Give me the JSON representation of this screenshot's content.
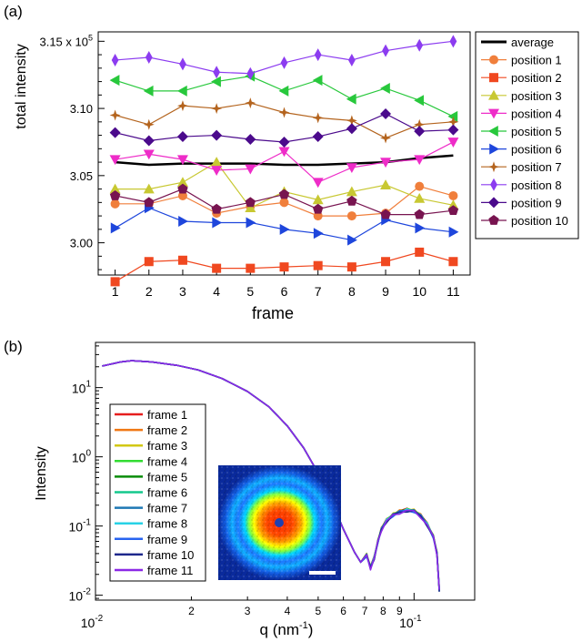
{
  "chart_data": [
    {
      "panel_label": "(a)",
      "type": "line",
      "xlabel": "frame",
      "ylabel": "total intensity",
      "y_multiplier_label": "x 10",
      "y_multiplier_exp": "5",
      "x": [
        1,
        2,
        3,
        4,
        5,
        6,
        7,
        8,
        9,
        10,
        11
      ],
      "xlim": [
        0.5,
        11.5
      ],
      "ylim": [
        2.976,
        3.157
      ],
      "y_ticks": [
        {
          "value": 3.0,
          "label": "3.00"
        },
        {
          "value": 3.05,
          "label": "3.05"
        },
        {
          "value": 3.1,
          "label": "3.10"
        },
        {
          "value": 3.15,
          "label": "3.15"
        }
      ],
      "legend_position": "right",
      "series": [
        {
          "name": "average",
          "color": "#000000",
          "marker": "none",
          "values": [
            3.06,
            3.058,
            3.059,
            3.059,
            3.059,
            3.058,
            3.058,
            3.059,
            3.06,
            3.063,
            3.065
          ]
        },
        {
          "name": "position  1",
          "color": "#f07f3c",
          "marker": "circle",
          "values": [
            3.029,
            3.029,
            3.035,
            3.022,
            3.027,
            3.03,
            3.02,
            3.02,
            3.022,
            3.042,
            3.035
          ]
        },
        {
          "name": "position  2",
          "color": "#f04820",
          "marker": "square",
          "values": [
            2.971,
            2.986,
            2.987,
            2.981,
            2.981,
            2.982,
            2.983,
            2.982,
            2.986,
            2.993,
            2.986
          ]
        },
        {
          "name": "position  3",
          "color": "#c8c832",
          "marker": "triangle-up",
          "values": [
            3.04,
            3.04,
            3.045,
            3.06,
            3.026,
            3.038,
            3.032,
            3.038,
            3.043,
            3.033,
            3.028
          ]
        },
        {
          "name": "position  4",
          "color": "#ee2cc8",
          "marker": "triangle-down",
          "values": [
            3.062,
            3.066,
            3.062,
            3.054,
            3.055,
            3.068,
            3.045,
            3.056,
            3.06,
            3.062,
            3.075
          ]
        },
        {
          "name": "position  5",
          "color": "#28c83c",
          "marker": "triangle-left",
          "values": [
            3.121,
            3.113,
            3.113,
            3.12,
            3.124,
            3.113,
            3.121,
            3.107,
            3.115,
            3.106,
            3.094
          ]
        },
        {
          "name": "position  6",
          "color": "#1e46dc",
          "marker": "triangle-right",
          "values": [
            3.011,
            3.026,
            3.016,
            3.015,
            3.015,
            3.01,
            3.007,
            3.002,
            3.017,
            3.011,
            3.008
          ]
        },
        {
          "name": "position  7",
          "color": "#b4641e",
          "marker": "star4",
          "values": [
            3.095,
            3.088,
            3.102,
            3.1,
            3.104,
            3.097,
            3.093,
            3.091,
            3.078,
            3.088,
            3.09
          ]
        },
        {
          "name": "position  8",
          "color": "#8c3cf0",
          "marker": "thin-diamond",
          "values": [
            3.136,
            3.138,
            3.133,
            3.127,
            3.126,
            3.134,
            3.14,
            3.136,
            3.143,
            3.147,
            3.15
          ]
        },
        {
          "name": "position  9",
          "color": "#4b0a8c",
          "marker": "diamond",
          "values": [
            3.082,
            3.076,
            3.079,
            3.08,
            3.077,
            3.075,
            3.079,
            3.085,
            3.096,
            3.083,
            3.084
          ]
        },
        {
          "name": "position 10",
          "color": "#781450",
          "marker": "pentagon",
          "values": [
            3.035,
            3.03,
            3.04,
            3.025,
            3.03,
            3.036,
            3.025,
            3.031,
            3.021,
            3.021,
            3.024
          ]
        }
      ]
    },
    {
      "panel_label": "(b)",
      "type": "line",
      "xlabel": "q (nm",
      "xlabel_sup": "-1",
      "xlabel_tail": ")",
      "ylabel": "Intensity",
      "x_scale": "log",
      "y_scale": "log",
      "xlim": [
        0.01,
        0.155
      ],
      "ylim": [
        0.0085,
        45
      ],
      "x_major_ticks": [
        {
          "value": 0.01,
          "base": "10",
          "exp": "-2"
        },
        {
          "value": 0.1,
          "base": "10",
          "exp": "-1"
        }
      ],
      "x_minor_labels": [
        {
          "value": 0.02,
          "label": "2"
        },
        {
          "value": 0.03,
          "label": "3"
        },
        {
          "value": 0.04,
          "label": "4"
        },
        {
          "value": 0.05,
          "label": "5"
        },
        {
          "value": 0.06,
          "label": "6"
        },
        {
          "value": 0.07,
          "label": "7"
        },
        {
          "value": 0.08,
          "label": "8"
        },
        {
          "value": 0.09,
          "label": "9"
        }
      ],
      "y_major_ticks": [
        {
          "value": 0.01,
          "base": "10",
          "exp": "-2"
        },
        {
          "value": 0.1,
          "base": "10",
          "exp": "-1"
        },
        {
          "value": 1,
          "base": "10",
          "exp": "0"
        },
        {
          "value": 10,
          "base": "10",
          "exp": "1"
        }
      ],
      "legend_position": "left",
      "profile": {
        "q": [
          0.0105,
          0.011,
          0.012,
          0.013,
          0.015,
          0.018,
          0.021,
          0.025,
          0.03,
          0.035,
          0.04,
          0.045,
          0.05,
          0.055,
          0.06,
          0.065,
          0.068,
          0.071,
          0.073,
          0.075,
          0.077,
          0.079,
          0.082,
          0.086,
          0.09,
          0.095,
          0.1,
          0.105,
          0.11,
          0.115,
          0.118,
          0.12
        ],
        "intensity": [
          20.5,
          21.5,
          23.5,
          24.5,
          23.5,
          21.0,
          18.0,
          13.5,
          8.8,
          5.3,
          2.8,
          1.35,
          0.58,
          0.23,
          0.09,
          0.042,
          0.03,
          0.038,
          0.025,
          0.035,
          0.06,
          0.09,
          0.12,
          0.145,
          0.16,
          0.17,
          0.165,
          0.14,
          0.105,
          0.07,
          0.04,
          0.012
        ]
      },
      "series": [
        {
          "name": "frame  1",
          "color": "#e61e1e"
        },
        {
          "name": "frame  2",
          "color": "#f07814"
        },
        {
          "name": "frame  3",
          "color": "#d2c814"
        },
        {
          "name": "frame  4",
          "color": "#32dc32"
        },
        {
          "name": "frame  5",
          "color": "#0a8c0a"
        },
        {
          "name": "frame  6",
          "color": "#14c88c"
        },
        {
          "name": "frame  7",
          "color": "#1e78b4"
        },
        {
          "name": "frame  8",
          "color": "#28d2e6"
        },
        {
          "name": "frame  9",
          "color": "#2864f0"
        },
        {
          "name": "frame 10",
          "color": "#1e288c"
        },
        {
          "name": "frame 11",
          "color": "#8c28e6"
        }
      ]
    }
  ]
}
